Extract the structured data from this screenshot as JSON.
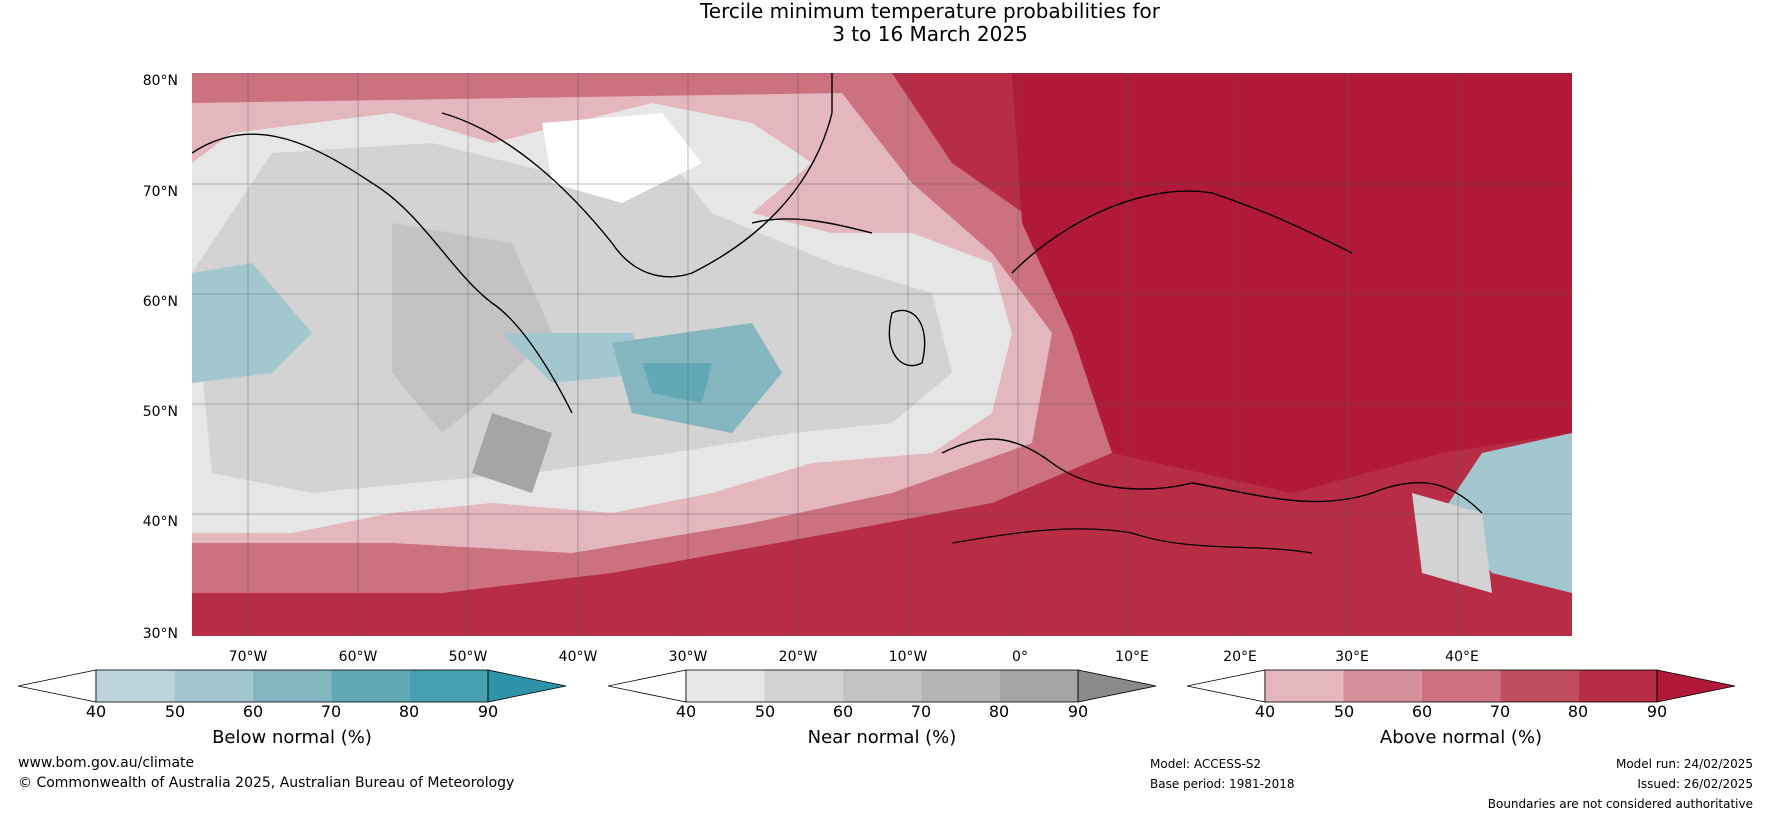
{
  "title": {
    "line1": "Tercile minimum temperature probabilities for",
    "line2": "3 to 16 March 2025"
  },
  "axes": {
    "lat_labels": [
      "80°N",
      "70°N",
      "60°N",
      "50°N",
      "40°N",
      "30°N"
    ],
    "lon_labels": [
      "70°W",
      "60°W",
      "50°W",
      "40°W",
      "30°W",
      "20°W",
      "10°W",
      "0°",
      "10°E",
      "20°E",
      "30°E",
      "40°E"
    ]
  },
  "colorbars": [
    {
      "label": "Below normal (%)",
      "ticks": [
        "40",
        "50",
        "60",
        "70",
        "80",
        "90"
      ],
      "colors": [
        "#ffffff",
        "#bed4db",
        "#a3c7ce",
        "#84b6c0",
        "#62a8b5",
        "#46a0b1",
        "#2e93a8"
      ]
    },
    {
      "label": "Near normal (%)",
      "ticks": [
        "40",
        "50",
        "60",
        "70",
        "80",
        "90"
      ],
      "colors": [
        "#ffffff",
        "#e6e6e6",
        "#d3d3d3",
        "#c3c3c3",
        "#b4b4b4",
        "#a5a5a5",
        "#8a8a8a"
      ]
    },
    {
      "label": "Above normal (%)",
      "ticks": [
        "40",
        "50",
        "60",
        "70",
        "80",
        "90"
      ],
      "colors": [
        "#ffffff",
        "#e4b6be",
        "#d6909b",
        "#cc7180",
        "#c14e60",
        "#b62d45",
        "#b01a38"
      ]
    }
  ],
  "footer": {
    "website": "www.bom.gov.au/climate",
    "copyright": "© Commonwealth of Australia 2025, Australian Bureau of Meteorology",
    "model": "Model: ACCESS-S2",
    "base_period": "Base period: 1981-2018",
    "model_run": "Model run: 24/02/2025",
    "issued": "Issued: 26/02/2025",
    "disclaimer": "Boundaries are not considered authoritative"
  }
}
